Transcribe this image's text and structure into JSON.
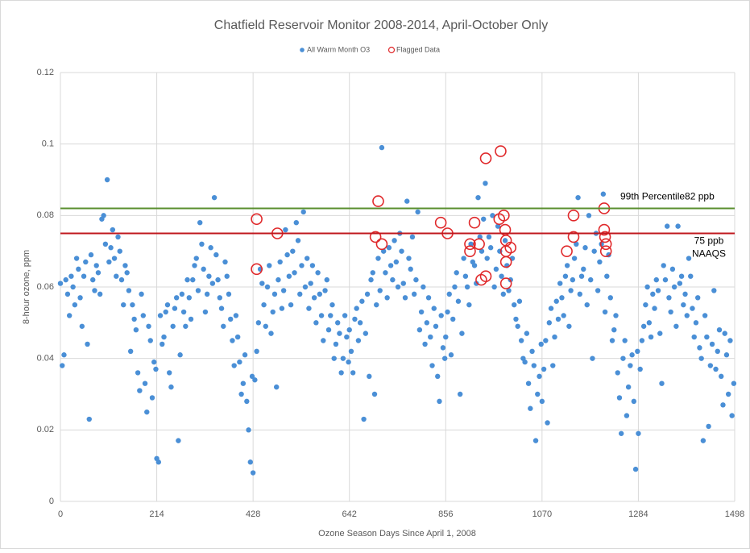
{
  "chart_data": {
    "type": "scatter",
    "title": "Chatfield Reservoir Monitor 2008-2014, April-October Only",
    "x_label": "Ozone Season Days Since April 1, 2008",
    "y_label": "8-hour ozone, ppm",
    "xlim": [
      0,
      1498
    ],
    "xticks": [
      0,
      214,
      428,
      642,
      856,
      1070,
      1284,
      1498
    ],
    "ylim": [
      0,
      0.12
    ],
    "yticks": [
      0,
      0.02,
      0.04,
      0.06,
      0.08,
      0.1,
      0.12
    ],
    "grid": true,
    "legend": "top",
    "reference_lines": [
      {
        "value": 0.082,
        "labels": [
          "99th Percentile82 ppb"
        ],
        "color": "#5a8f2f"
      },
      {
        "value": 0.075,
        "labels": [
          "75 ppb",
          "NAAQS"
        ],
        "color": "#c0181e"
      }
    ],
    "series": [
      {
        "name": "All Warm Month O3",
        "color": "#4a8fd6",
        "marker": "filled",
        "x": [
          0,
          8,
          16,
          24,
          32,
          40,
          48,
          56,
          64,
          72,
          80,
          88,
          96,
          104,
          112,
          120,
          128,
          136,
          144,
          152,
          160,
          168,
          176,
          184,
          192,
          200,
          208,
          214,
          222,
          230,
          238,
          246,
          254,
          262,
          270,
          278,
          286,
          294,
          302,
          310,
          318,
          326,
          334,
          342,
          350,
          358,
          366,
          374,
          382,
          390,
          398,
          406,
          414,
          422,
          428,
          436,
          444,
          452,
          460,
          468,
          476,
          484,
          492,
          500,
          508,
          516,
          524,
          532,
          540,
          548,
          556,
          564,
          572,
          580,
          588,
          596,
          604,
          612,
          620,
          628,
          636,
          642,
          650,
          658,
          666,
          674,
          682,
          690,
          698,
          706,
          714,
          722,
          730,
          738,
          746,
          754,
          762,
          770,
          778,
          786,
          794,
          802,
          810,
          818,
          826,
          834,
          842,
          850,
          856,
          864,
          872,
          880,
          888,
          896,
          904,
          912,
          920,
          928,
          936,
          944,
          952,
          960,
          968,
          976,
          984,
          992,
          1000,
          1008,
          1016,
          1024,
          1032,
          1040,
          1048,
          1056,
          1064,
          1070,
          1078,
          1086,
          1094,
          1102,
          1110,
          1118,
          1126,
          1134,
          1142,
          1150,
          1158,
          1166,
          1174,
          1182,
          1190,
          1198,
          1206,
          1214,
          1222,
          1230,
          1238,
          1246,
          1254,
          1262,
          1270,
          1278,
          1284,
          1292,
          1300,
          1308,
          1316,
          1324,
          1332,
          1340,
          1348,
          1356,
          1364,
          1372,
          1380,
          1388,
          1396,
          1404,
          1412,
          1420,
          1428,
          1436,
          1444,
          1452,
          1460,
          1468,
          1476,
          1484,
          1492,
          4,
          12,
          20,
          28,
          36,
          44,
          52,
          60,
          68,
          76,
          84,
          92,
          100,
          108,
          116,
          124,
          132,
          140,
          148,
          156,
          164,
          172,
          180,
          188,
          196,
          204,
          212,
          218,
          226,
          234,
          242,
          250,
          258,
          266,
          274,
          282,
          290,
          298,
          306,
          314,
          322,
          330,
          338,
          346,
          354,
          362,
          370,
          378,
          386,
          394,
          402,
          410,
          418,
          426,
          432,
          440,
          448,
          456,
          464,
          472,
          480,
          488,
          496,
          504,
          512,
          520,
          528,
          536,
          544,
          552,
          560,
          568,
          576,
          584,
          592,
          600,
          608,
          616,
          624,
          632,
          640,
          646,
          654,
          662,
          670,
          678,
          686,
          694,
          702,
          710,
          718,
          726,
          734,
          742,
          750,
          758,
          766,
          774,
          782,
          790,
          798,
          806,
          814,
          822,
          830,
          838,
          846,
          854,
          860,
          868,
          876,
          884,
          892,
          900,
          908,
          916,
          924,
          932,
          940,
          948,
          956,
          964,
          972,
          980,
          988,
          996,
          1004,
          1012,
          1020,
          1028,
          1036,
          1044,
          1052,
          1060,
          1068,
          1074,
          1082,
          1090,
          1098,
          1106,
          1114,
          1122,
          1130,
          1138,
          1146,
          1154,
          1162,
          1170,
          1178,
          1186,
          1194,
          1202,
          1210,
          1218,
          1226,
          1234,
          1242,
          1250,
          1258,
          1266,
          1274,
          1282,
          1288,
          1296,
          1304,
          1312,
          1320,
          1328,
          1336,
          1344,
          1352,
          1360,
          1368,
          1376,
          1384,
          1392,
          1400,
          1408,
          1416,
          1424,
          1432,
          1440,
          1448,
          1456,
          1464,
          1472,
          1480,
          1488,
          1496
        ],
        "values": [
          0.061,
          0.041,
          0.058,
          0.063,
          0.055,
          0.065,
          0.049,
          0.067,
          0.023,
          0.062,
          0.066,
          0.058,
          0.08,
          0.09,
          0.071,
          0.068,
          0.074,
          0.062,
          0.066,
          0.059,
          0.055,
          0.048,
          0.031,
          0.052,
          0.025,
          0.045,
          0.039,
          0.012,
          0.052,
          0.046,
          0.055,
          0.032,
          0.054,
          0.017,
          0.058,
          0.049,
          0.057,
          0.062,
          0.068,
          0.078,
          0.065,
          0.058,
          0.071,
          0.085,
          0.062,
          0.054,
          0.067,
          0.058,
          0.045,
          0.052,
          0.039,
          0.033,
          0.028,
          0.011,
          0.008,
          0.042,
          0.065,
          0.055,
          0.06,
          0.047,
          0.058,
          0.062,
          0.054,
          0.076,
          0.063,
          0.07,
          0.078,
          0.058,
          0.081,
          0.068,
          0.061,
          0.057,
          0.064,
          0.052,
          0.059,
          0.048,
          0.055,
          0.044,
          0.047,
          0.04,
          0.046,
          0.048,
          0.036,
          0.054,
          0.05,
          0.023,
          0.058,
          0.062,
          0.03,
          0.068,
          0.099,
          0.064,
          0.071,
          0.062,
          0.067,
          0.075,
          0.061,
          0.084,
          0.065,
          0.058,
          0.081,
          0.053,
          0.044,
          0.057,
          0.038,
          0.049,
          0.028,
          0.043,
          0.046,
          0.058,
          0.051,
          0.064,
          0.03,
          0.068,
          0.06,
          0.072,
          0.066,
          0.085,
          0.07,
          0.089,
          0.074,
          0.08,
          0.065,
          0.07,
          0.058,
          0.066,
          0.062,
          0.055,
          0.049,
          0.045,
          0.039,
          0.033,
          0.042,
          0.017,
          0.035,
          0.028,
          0.045,
          0.05,
          0.038,
          0.056,
          0.061,
          0.052,
          0.066,
          0.059,
          0.068,
          0.085,
          0.063,
          0.071,
          0.08,
          0.04,
          0.075,
          0.067,
          0.086,
          0.063,
          0.057,
          0.048,
          0.036,
          0.019,
          0.045,
          0.032,
          0.041,
          0.009,
          0.019,
          0.045,
          0.055,
          0.05,
          0.058,
          0.062,
          0.047,
          0.066,
          0.077,
          0.053,
          0.06,
          0.077,
          0.063,
          0.058,
          0.068,
          0.054,
          0.05,
          0.043,
          0.017,
          0.046,
          0.038,
          0.059,
          0.042,
          0.035,
          0.047,
          0.03,
          0.024,
          0.038,
          0.062,
          0.052,
          0.06,
          0.068,
          0.057,
          0.063,
          0.044,
          0.069,
          0.059,
          0.064,
          0.079,
          0.072,
          0.067,
          0.076,
          0.063,
          0.07,
          0.055,
          0.064,
          0.042,
          0.051,
          0.036,
          0.058,
          0.033,
          0.049,
          0.029,
          0.037,
          0.011,
          0.044,
          0.053,
          0.036,
          0.049,
          0.057,
          0.041,
          0.053,
          0.062,
          0.051,
          0.066,
          0.059,
          0.072,
          0.053,
          0.063,
          0.061,
          0.069,
          0.057,
          0.049,
          0.063,
          0.051,
          0.038,
          0.046,
          0.03,
          0.041,
          0.02,
          0.035,
          0.034,
          0.05,
          0.061,
          0.049,
          0.066,
          0.053,
          0.032,
          0.067,
          0.059,
          0.069,
          0.055,
          0.064,
          0.073,
          0.066,
          0.06,
          0.054,
          0.066,
          0.05,
          0.058,
          0.045,
          0.062,
          0.052,
          0.04,
          0.05,
          0.036,
          0.052,
          0.039,
          0.042,
          0.051,
          0.045,
          0.056,
          0.047,
          0.035,
          0.064,
          0.055,
          0.059,
          0.07,
          0.057,
          0.066,
          0.073,
          0.06,
          0.07,
          0.057,
          0.068,
          0.074,
          0.062,
          0.048,
          0.06,
          0.05,
          0.046,
          0.054,
          0.035,
          0.052,
          0.04,
          0.053,
          0.041,
          0.06,
          0.056,
          0.047,
          0.063,
          0.055,
          0.067,
          0.061,
          0.074,
          0.079,
          0.068,
          0.071,
          0.06,
          0.077,
          0.063,
          0.073,
          0.059,
          0.068,
          0.051,
          0.056,
          0.04,
          0.047,
          0.026,
          0.038,
          0.03,
          0.044,
          0.037,
          0.022,
          0.054,
          0.046,
          0.051,
          0.057,
          0.063,
          0.049,
          0.062,
          0.072,
          0.058,
          0.065,
          0.055,
          0.062,
          0.07,
          0.059,
          0.072,
          0.053,
          0.069,
          0.045,
          0.052,
          0.029,
          0.04,
          0.024,
          0.038,
          0.028,
          0.042,
          0.037,
          0.049,
          0.06,
          0.046,
          0.054,
          0.059,
          0.033,
          0.062,
          0.057,
          0.065,
          0.049,
          0.061,
          0.055,
          0.052,
          0.063,
          0.046,
          0.057,
          0.04,
          0.052,
          0.021,
          0.044,
          0.037,
          0.048,
          0.027,
          0.041,
          0.045,
          0.033
        ]
      },
      {
        "name": "Flagged Data",
        "color": "#e0292b",
        "marker": "open",
        "x": [
          436,
          436,
          482,
          700,
          706,
          714,
          845,
          860,
          910,
          910,
          920,
          930,
          935,
          945,
          945,
          978,
          975,
          985,
          988,
          990,
          990,
          990,
          990,
          1000,
          1125,
          1140,
          1140,
          1208,
          1208,
          1210,
          1212,
          1212
        ],
        "values": [
          0.079,
          0.065,
          0.075,
          0.074,
          0.084,
          0.072,
          0.078,
          0.075,
          0.072,
          0.07,
          0.078,
          0.072,
          0.062,
          0.096,
          0.063,
          0.098,
          0.079,
          0.08,
          0.076,
          0.073,
          0.07,
          0.067,
          0.061,
          0.071,
          0.07,
          0.08,
          0.074,
          0.082,
          0.076,
          0.074,
          0.072,
          0.07
        ]
      }
    ]
  }
}
